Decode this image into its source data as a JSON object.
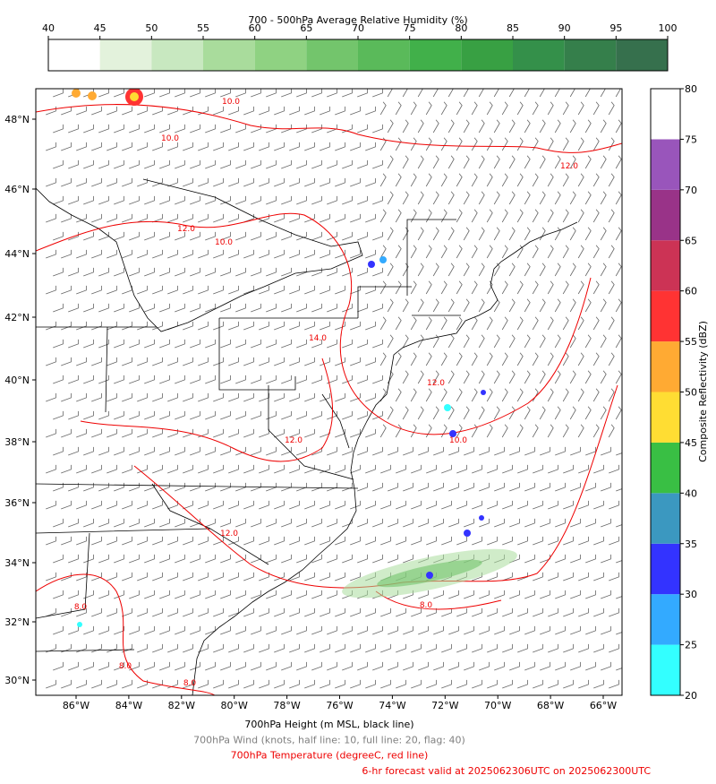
{
  "rh_colorbar": {
    "title": "700 - 500hPa Average Relative Humidity (%)",
    "ticks": [
      40,
      45,
      50,
      55,
      60,
      65,
      70,
      75,
      80,
      85,
      90,
      95,
      100
    ],
    "colors": [
      "#ffffff",
      "#e3f2dc",
      "#c8e8c0",
      "#a9dc9c",
      "#8fd282",
      "#73c56c",
      "#5aba5a",
      "#41b04a",
      "#38a043",
      "#34904a",
      "#357f4b",
      "#36704d"
    ]
  },
  "reflectivity_colorbar": {
    "label": "Composite Reflectivity (dBZ)",
    "ticks": [
      20,
      25,
      30,
      35,
      40,
      45,
      50,
      55,
      60,
      65,
      70,
      75,
      80
    ],
    "colors": [
      "#33ffff",
      "#33aaff",
      "#3333ff",
      "#3b98c0",
      "#39bf44",
      "#ffdd33",
      "#ffaa33",
      "#ff3333",
      "#cc3355",
      "#993388",
      "#9955bb",
      "#ffffff"
    ]
  },
  "map": {
    "longitude_labels": [
      "86°W",
      "84°W",
      "82°W",
      "80°W",
      "78°W",
      "76°W",
      "74°W",
      "72°W",
      "70°W",
      "68°W",
      "66°W"
    ],
    "latitude_labels": [
      "48°N",
      "46°N",
      "44°N",
      "42°N",
      "40°N",
      "38°N",
      "36°N",
      "34°N",
      "32°N",
      "30°N"
    ],
    "temperature_contour_labels": [
      "10.0",
      "10.0",
      "12.0",
      "10.0",
      "12.0",
      "14.0",
      "12.0",
      "12.0",
      "10.0",
      "12.0",
      "8.0",
      "8.0",
      "8.0",
      "8.0"
    ]
  },
  "footer": {
    "lines": [
      {
        "text": "700hPa Height (m MSL, black line)",
        "color": "#000000"
      },
      {
        "text": "700hPa Wind (knots, half line: 10, full line: 20, flag: 40)",
        "color": "#808080"
      },
      {
        "text": "700hPa Temperature (degreeC, red line)",
        "color": "#ee0000"
      },
      {
        "text": "6-hr forecast valid at 2025062306UTC on 2025062300UTC",
        "color": "#ee0000"
      }
    ]
  }
}
